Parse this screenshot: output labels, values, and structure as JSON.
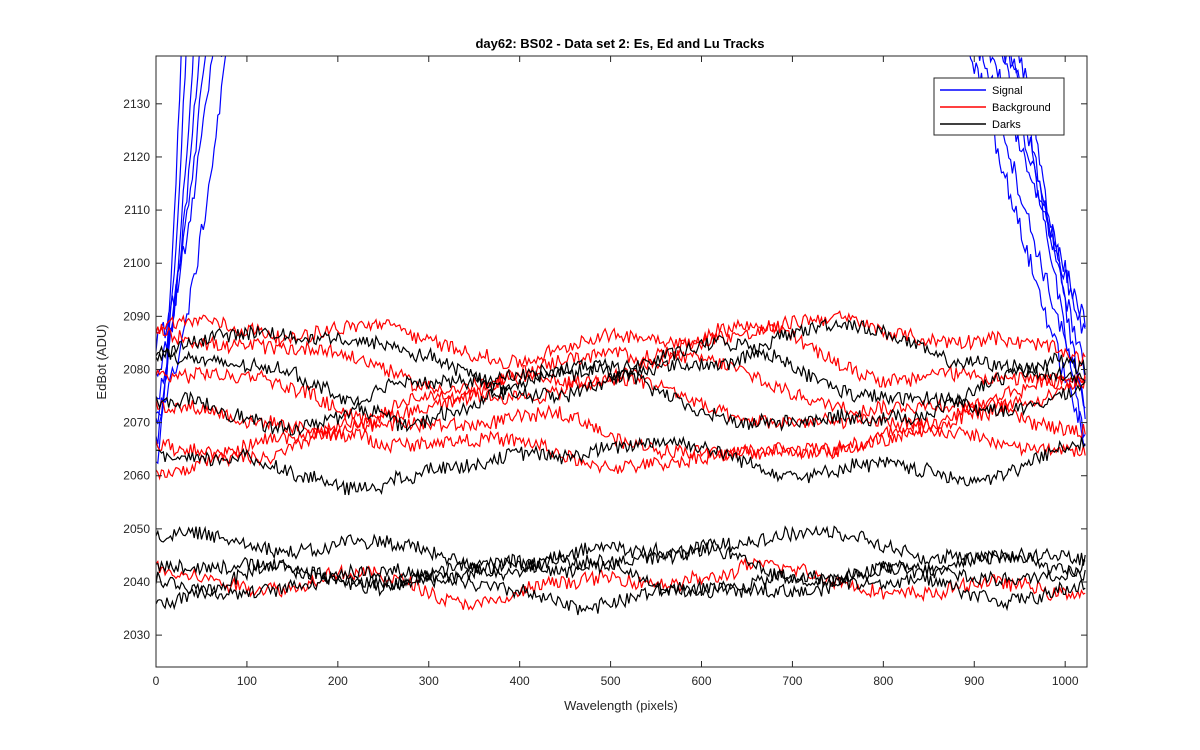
{
  "chart_data": {
    "type": "line",
    "title": "day62: BS02 - Data set 2: Es, Ed and Lu Tracks",
    "xlabel": "Wavelength (pixels)",
    "ylabel": "EdBot (ADU)",
    "xlim": [
      0,
      1024
    ],
    "ylim": [
      2024,
      2139
    ],
    "xticks": [
      0,
      100,
      200,
      300,
      400,
      500,
      600,
      700,
      800,
      900,
      1000
    ],
    "yticks": [
      2030,
      2040,
      2050,
      2060,
      2070,
      2080,
      2090,
      2100,
      2110,
      2120,
      2130
    ],
    "legend_position": "top-right",
    "legend": [
      {
        "label": "Signal",
        "color": "#0000ff"
      },
      {
        "label": "Background",
        "color": "#ff0000"
      },
      {
        "label": "Darks",
        "color": "#000000"
      }
    ],
    "series": [
      {
        "group": "Signal",
        "color": "#0000ff",
        "start": 2062,
        "end": 2070,
        "left_peak": 30,
        "right_knee": 960
      },
      {
        "group": "Signal",
        "color": "#0000ff",
        "start": 2066,
        "end": 2064,
        "left_peak": 36,
        "right_knee": 955
      },
      {
        "group": "Signal",
        "color": "#0000ff",
        "start": 2070,
        "end": 2078,
        "left_peak": 45,
        "right_knee": 948
      },
      {
        "group": "Signal",
        "color": "#0000ff",
        "start": 2075,
        "end": 2085,
        "left_peak": 52,
        "right_knee": 940
      },
      {
        "group": "Signal",
        "color": "#0000ff",
        "start": 2080,
        "end": 2088,
        "left_peak": 60,
        "right_knee": 930
      },
      {
        "group": "Signal",
        "color": "#0000ff",
        "start": 2085,
        "end": 2072,
        "left_peak": 70,
        "right_knee": 920
      },
      {
        "group": "Signal",
        "color": "#0000ff",
        "start": 2072,
        "end": 2066,
        "left_peak": 85,
        "right_knee": 908
      },
      {
        "group": "Background",
        "color": "#ff0000",
        "mean": 2086,
        "amp": 3,
        "phase": 0.3
      },
      {
        "group": "Background",
        "color": "#ff0000",
        "mean": 2082,
        "amp": 4,
        "phase": 1.2
      },
      {
        "group": "Background",
        "color": "#ff0000",
        "mean": 2077,
        "amp": 4,
        "phase": 2.1
      },
      {
        "group": "Background",
        "color": "#ff0000",
        "mean": 2073,
        "amp": 4,
        "phase": 3.0
      },
      {
        "group": "Background",
        "color": "#ff0000",
        "mean": 2068,
        "amp": 3,
        "phase": 4.2
      },
      {
        "group": "Background",
        "color": "#ff0000",
        "mean": 2065,
        "amp": 3,
        "phase": 5.1
      },
      {
        "group": "Background",
        "color": "#ff0000",
        "mean": 2040,
        "amp": 1.5,
        "phase": 0.8
      },
      {
        "group": "Darks",
        "color": "#000000",
        "mean": 2082,
        "amp": 5,
        "phase": 0.0
      },
      {
        "group": "Darks",
        "color": "#000000",
        "mean": 2078,
        "amp": 6,
        "phase": 1.7
      },
      {
        "group": "Darks",
        "color": "#000000",
        "mean": 2075,
        "amp": 5,
        "phase": 3.4
      },
      {
        "group": "Darks",
        "color": "#000000",
        "mean": 2063,
        "amp": 3,
        "phase": 2.5
      },
      {
        "group": "Darks",
        "color": "#000000",
        "mean": 2046,
        "amp": 2,
        "phase": 0.5
      },
      {
        "group": "Darks",
        "color": "#000000",
        "mean": 2043,
        "amp": 2,
        "phase": 2.2
      },
      {
        "group": "Darks",
        "color": "#000000",
        "mean": 2041,
        "amp": 2,
        "phase": 4.0
      },
      {
        "group": "Darks",
        "color": "#000000",
        "mean": 2039,
        "amp": 2,
        "phase": 5.5
      }
    ]
  }
}
